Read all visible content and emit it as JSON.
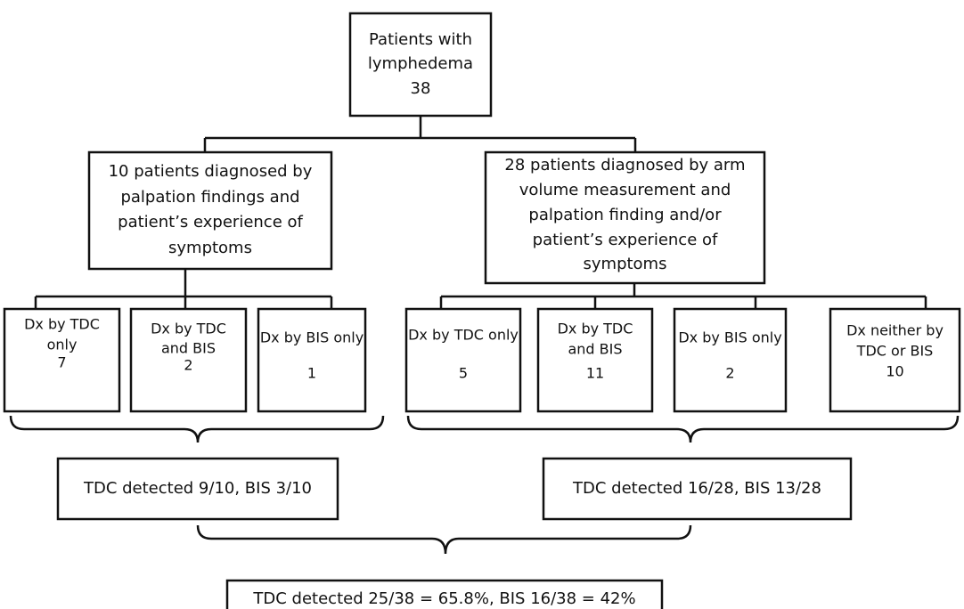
{
  "root": {
    "lines": [
      "Patients with",
      "lymphedema"
    ],
    "count": 38
  },
  "groups": [
    {
      "lines": [
        "10 patients diagnosed by",
        "palpation findings and",
        "patient’s experience of",
        "symptoms"
      ],
      "subgroups": [
        {
          "lines": [
            "Dx by TDC",
            "only"
          ],
          "count": 7
        },
        {
          "lines": [
            "Dx by TDC",
            "and BIS"
          ],
          "count": 2
        },
        {
          "lines": [
            "Dx by BIS only"
          ],
          "count": 1
        }
      ],
      "summary": "TDC detected 9/10, BIS 3/10"
    },
    {
      "lines": [
        "28 patients diagnosed by arm",
        "volume measurement and",
        "palpation finding and/or",
        "patient’s experience of",
        "symptoms"
      ],
      "subgroups": [
        {
          "lines": [
            "Dx by TDC only"
          ],
          "count": 5
        },
        {
          "lines": [
            "Dx by TDC",
            "and BIS"
          ],
          "count": 11
        },
        {
          "lines": [
            "Dx by BIS only"
          ],
          "count": 2
        },
        {
          "lines": [
            "Dx neither by",
            "TDC or BIS"
          ],
          "count": 10
        }
      ],
      "summary": "TDC detected 16/28, BIS 13/28"
    }
  ],
  "total": "TDC detected 25/38 = 65.8%, BIS 16/38 = 42%"
}
